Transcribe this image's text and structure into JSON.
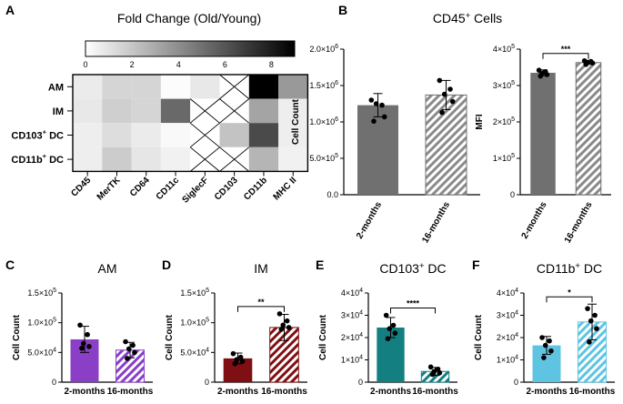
{
  "colors": {
    "gray": "#707070",
    "purple": "#8a3fc6",
    "maroon": "#7f0f12",
    "teal": "#137f80",
    "sky": "#5fc4e2"
  },
  "chart_data": [
    {
      "id": "A",
      "type": "heatmap",
      "title": "Fold Change (Old/Young)",
      "colorbar": {
        "min": 0,
        "max": 9,
        "ticks": [
          "0",
          "2",
          "4",
          "6",
          "8"
        ]
      },
      "rows": [
        "AM",
        "IM",
        "CD103",
        "CD11b"
      ],
      "row_superscript": [
        "",
        "",
        "+",
        "+"
      ],
      "row_suffix": [
        "",
        "",
        " DC",
        " DC"
      ],
      "cols": [
        "CD45",
        "MerTK",
        "CD64",
        "CD11c",
        "SiglecF",
        "CD103",
        "CD11b",
        "MHC II"
      ],
      "values": [
        [
          0.7,
          1.5,
          1.5,
          0.1,
          0.8,
          null,
          9.0,
          3.6
        ],
        [
          0.8,
          1.7,
          1.5,
          5.3,
          null,
          null,
          3.2,
          0.6
        ],
        [
          0.6,
          1.2,
          0.7,
          0.2,
          null,
          2.1,
          6.4,
          0.6
        ],
        [
          0.6,
          1.8,
          0.9,
          0.5,
          null,
          null,
          2.6,
          0.5
        ]
      ]
    },
    {
      "id": "B1",
      "letter": "B",
      "type": "bar",
      "title": "CD45",
      "title_sup": "+",
      "title_suffix": " Cells",
      "ylabel": "Cell Count",
      "ylim": [
        0,
        2000000
      ],
      "ytick_values": [
        0,
        500000,
        1000000,
        1500000,
        2000000
      ],
      "ytick_labels": [
        {
          "m": "0.0",
          "e": ""
        },
        {
          "m": "5.0×10",
          "e": "5"
        },
        {
          "m": "1.0×10",
          "e": "6"
        },
        {
          "m": "1.5×10",
          "e": "6"
        },
        {
          "m": "2.0×10",
          "e": "6"
        }
      ],
      "categories": [
        "2-months",
        "16-months"
      ],
      "rotate": true,
      "values": [
        1230000,
        1370000
      ],
      "errors": [
        160000,
        200000
      ],
      "points": [
        [
          1300000,
          1230000,
          1250000,
          1070000,
          1010000
        ],
        [
          1570000,
          1450000,
          1380000,
          1280000,
          1130000
        ]
      ],
      "colorKey": "gray",
      "significance": ""
    },
    {
      "id": "B2",
      "letter": "",
      "type": "bar",
      "title": "",
      "ylabel": "MFI",
      "ylim": [
        0,
        400000
      ],
      "ytick_values": [
        0,
        100000,
        200000,
        300000,
        400000
      ],
      "ytick_labels": [
        {
          "m": "0",
          "e": ""
        },
        {
          "m": "1×10",
          "e": "5"
        },
        {
          "m": "2×10",
          "e": "5"
        },
        {
          "m": "3×10",
          "e": "5"
        },
        {
          "m": "4×10",
          "e": "5"
        }
      ],
      "categories": [
        "2-months",
        "16-months"
      ],
      "rotate": true,
      "values": [
        335000,
        363000
      ],
      "errors": [
        8000,
        5000
      ],
      "points": [
        [
          342000,
          338000,
          333000,
          330000,
          326000
        ],
        [
          368000,
          366000,
          364000,
          362000,
          358000
        ]
      ],
      "colorKey": "gray",
      "significance": "***"
    },
    {
      "id": "C",
      "letter": "C",
      "type": "bar",
      "title": "AM",
      "title_sup": "",
      "title_suffix": "",
      "ylabel": "Cell Count",
      "ylim": [
        0,
        150000
      ],
      "ytick_values": [
        0,
        50000,
        100000,
        150000
      ],
      "ytick_labels": [
        {
          "m": "0",
          "e": ""
        },
        {
          "m": "5.0×10",
          "e": "4"
        },
        {
          "m": "1.0×10",
          "e": "5"
        },
        {
          "m": "1.5×10",
          "e": "5"
        }
      ],
      "categories": [
        "2-months",
        "16-months"
      ],
      "rotate": false,
      "values": [
        72000,
        54000
      ],
      "errors": [
        22000,
        13000
      ],
      "points": [
        [
          96000,
          80000,
          65000,
          60000,
          57000
        ],
        [
          68000,
          62000,
          56000,
          50000,
          40000
        ]
      ],
      "colorKey": "purple",
      "significance": ""
    },
    {
      "id": "D",
      "letter": "D",
      "type": "bar",
      "title": "IM",
      "title_sup": "",
      "title_suffix": "",
      "ylabel": "Cell Count",
      "ylim": [
        0,
        150000
      ],
      "ytick_values": [
        0,
        50000,
        100000,
        150000
      ],
      "ytick_labels": [
        {
          "m": "0",
          "e": ""
        },
        {
          "m": "5.0×10",
          "e": "4"
        },
        {
          "m": "1.0×10",
          "e": "5"
        },
        {
          "m": "1.5×10",
          "e": "5"
        }
      ],
      "categories": [
        "2-months",
        "16-months"
      ],
      "rotate": false,
      "values": [
        40000,
        92000
      ],
      "errors": [
        9000,
        22000
      ],
      "points": [
        [
          48000,
          42000,
          38000,
          35000,
          31000
        ],
        [
          115000,
          103000,
          96000,
          92000,
          89000
        ]
      ],
      "colorKey": "maroon",
      "significance": "**"
    },
    {
      "id": "E",
      "letter": "E",
      "type": "bar",
      "title": "CD103",
      "title_sup": "+",
      "title_suffix": " DC",
      "ylabel": "Cell Count",
      "ylim": [
        0,
        40000
      ],
      "ytick_values": [
        0,
        10000,
        20000,
        30000,
        40000
      ],
      "ytick_labels": [
        {
          "m": "0",
          "e": ""
        },
        {
          "m": "1×10",
          "e": "4"
        },
        {
          "m": "2×10",
          "e": "4"
        },
        {
          "m": "3×10",
          "e": "4"
        },
        {
          "m": "4×10",
          "e": "4"
        }
      ],
      "categories": [
        "2-months",
        "16-months"
      ],
      "rotate": false,
      "values": [
        24500,
        4800
      ],
      "errors": [
        4500,
        1800
      ],
      "points": [
        [
          30000,
          25500,
          24000,
          22000,
          19500
        ],
        [
          6800,
          5800,
          4800,
          4200,
          3500
        ]
      ],
      "colorKey": "teal",
      "significance": "****"
    },
    {
      "id": "F",
      "letter": "F",
      "type": "bar",
      "title": "CD11b",
      "title_sup": "+",
      "title_suffix": " DC",
      "ylabel": "Cell Count",
      "ylim": [
        0,
        40000
      ],
      "ytick_values": [
        0,
        10000,
        20000,
        30000,
        40000
      ],
      "ytick_labels": [
        {
          "m": "0",
          "e": ""
        },
        {
          "m": "1×10",
          "e": "4"
        },
        {
          "m": "2×10",
          "e": "4"
        },
        {
          "m": "3×10",
          "e": "4"
        },
        {
          "m": "4×10",
          "e": "4"
        }
      ],
      "categories": [
        "2-months",
        "16-months"
      ],
      "rotate": false,
      "values": [
        16500,
        27000
      ],
      "errors": [
        4000,
        8000
      ],
      "points": [
        [
          20000,
          18500,
          16500,
          14000,
          11000
        ],
        [
          33000,
          30000,
          27500,
          24000,
          18000
        ]
      ],
      "colorKey": "sky",
      "significance": "*"
    }
  ]
}
